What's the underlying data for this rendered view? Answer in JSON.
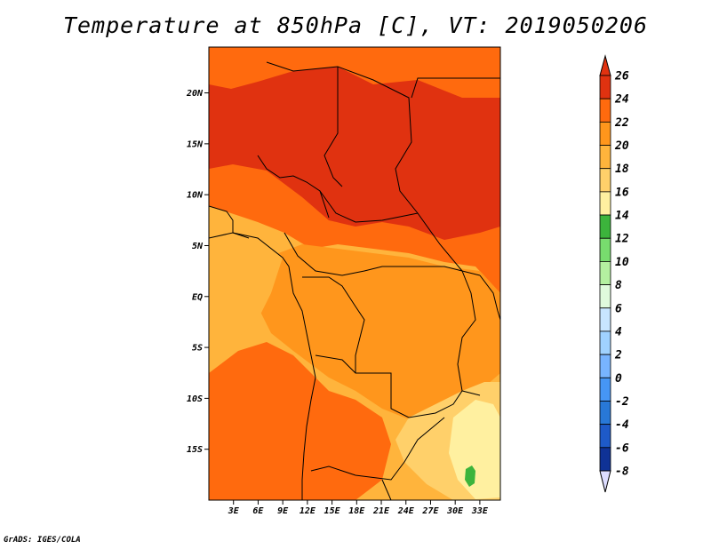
{
  "title": "Temperature at 850hPa [C], VT: 2019050206",
  "credit": "GrADS: IGES/COLA",
  "map": {
    "lon_range": [
      0,
      35.5
    ],
    "lat_range": [
      -20,
      24.5
    ],
    "lat_ticks": [
      {
        "value": 20,
        "label": "20N"
      },
      {
        "value": 15,
        "label": "15N"
      },
      {
        "value": 10,
        "label": "10N"
      },
      {
        "value": 5,
        "label": "5N"
      },
      {
        "value": 0,
        "label": "EQ"
      },
      {
        "value": -5,
        "label": "5S"
      },
      {
        "value": -10,
        "label": "10S"
      },
      {
        "value": -15,
        "label": "15S"
      }
    ],
    "lon_ticks": [
      {
        "value": 3,
        "label": "3E"
      },
      {
        "value": 6,
        "label": "6E"
      },
      {
        "value": 9,
        "label": "9E"
      },
      {
        "value": 12,
        "label": "12E"
      },
      {
        "value": 15,
        "label": "15E"
      },
      {
        "value": 18,
        "label": "18E"
      },
      {
        "value": 21,
        "label": "21E"
      },
      {
        "value": 24,
        "label": "24E"
      },
      {
        "value": 27,
        "label": "27E"
      },
      {
        "value": 30,
        "label": "30E"
      },
      {
        "value": 33,
        "label": "33E"
      }
    ]
  },
  "colorbar": {
    "levels": [
      "26",
      "24",
      "22",
      "20",
      "18",
      "16",
      "14",
      "12",
      "10",
      "8",
      "6",
      "4",
      "2",
      "0",
      "-2",
      "-4",
      "-6",
      "-8"
    ],
    "colors": [
      "#e03210",
      "#ff6a0e",
      "#ff961c",
      "#ffb43c",
      "#ffd06a",
      "#fff0a0",
      "#3cb43c",
      "#78dc6e",
      "#b4f0a0",
      "#e0fadc",
      "#c8e6ff",
      "#a0d2ff",
      "#78b4ff",
      "#4696f5",
      "#2878d7",
      "#1e5ac8",
      "#0f3296",
      "#000064"
    ],
    "top_color": "#e03210",
    "bottom_color": "#ddddff"
  },
  "regions": [
    {
      "name": "northern-orange",
      "color": "#ff6a0e"
    },
    {
      "name": "sahel-red-core",
      "color": "#e03210"
    },
    {
      "name": "congo-orange",
      "color": "#ff961c"
    },
    {
      "name": "atlantic-light-orange",
      "color": "#ffb43c"
    },
    {
      "name": "angola-orange",
      "color": "#ff6a0e"
    },
    {
      "name": "zambia-yellow",
      "color": "#ffd06a"
    },
    {
      "name": "malawi-pale",
      "color": "#fff0a0"
    },
    {
      "name": "highland-green",
      "color": "#3cb43c"
    }
  ]
}
